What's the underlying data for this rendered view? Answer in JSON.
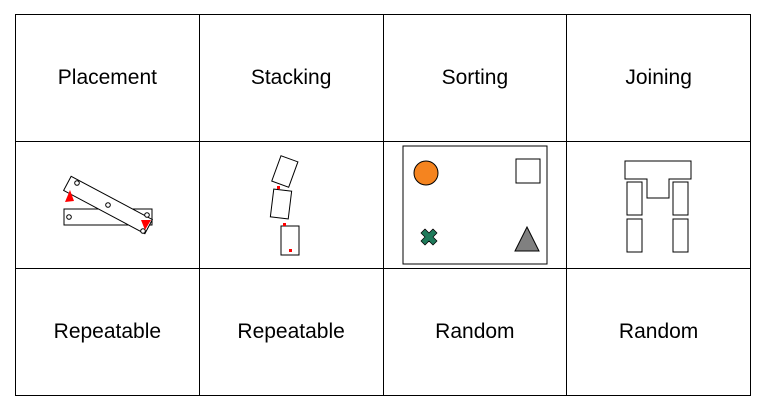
{
  "header": [
    {
      "label": "Placement"
    },
    {
      "label": "Stacking"
    },
    {
      "label": "Sorting"
    },
    {
      "label": "Joining"
    }
  ],
  "footer": [
    {
      "label": "Repeatable"
    },
    {
      "label": "Repeatable"
    },
    {
      "label": "Random"
    },
    {
      "label": "Random"
    }
  ],
  "figures": {
    "placement": {
      "icon": "placement-diagram-icon",
      "marker_color": "#ff0000"
    },
    "stacking": {
      "icon": "stacking-blocks-icon",
      "marker_color": "#ff0000"
    },
    "sorting": {
      "icon": "sorting-shapes-icon",
      "circle_color": "#f5841f",
      "cross_color": "#1e7a5a",
      "triangle_color": "#808080",
      "square_color": "#ffffff"
    },
    "joining": {
      "icon": "joining-parts-icon"
    }
  }
}
